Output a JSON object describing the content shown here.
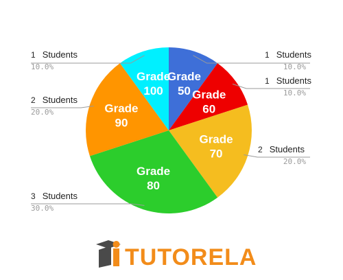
{
  "chart_data": {
    "type": "pie",
    "slices": [
      {
        "label": [
          "Grade",
          "50"
        ],
        "value": 1,
        "count": "1",
        "unit": "Students",
        "percent": "10.0%",
        "color": "#3e6fd8"
      },
      {
        "label": [
          "Grade",
          "60"
        ],
        "value": 1,
        "count": "1",
        "unit": "Students",
        "percent": "10.0%",
        "color": "#ee0000"
      },
      {
        "label": [
          "Grade",
          "70"
        ],
        "value": 2,
        "count": "2",
        "unit": "Students",
        "percent": "20.0%",
        "color": "#f5bd1f"
      },
      {
        "label": [
          "Grade",
          "80"
        ],
        "value": 3,
        "count": "3",
        "unit": "Students",
        "percent": "30.0%",
        "color": "#2ccd2c"
      },
      {
        "label": [
          "Grade",
          "90"
        ],
        "value": 2,
        "count": "2",
        "unit": "Students",
        "percent": "20.0%",
        "color": "#ff9500"
      },
      {
        "label": [
          "Grade",
          "100"
        ],
        "value": 1,
        "count": "1",
        "unit": "Students",
        "percent": "10.0%",
        "color": "#00f0ff"
      }
    ]
  },
  "logo": {
    "text": "TUTORELA",
    "text_color": "#f28c1a",
    "icon_dark": "#4a4a4a",
    "icon_accent": "#f28c1a"
  }
}
